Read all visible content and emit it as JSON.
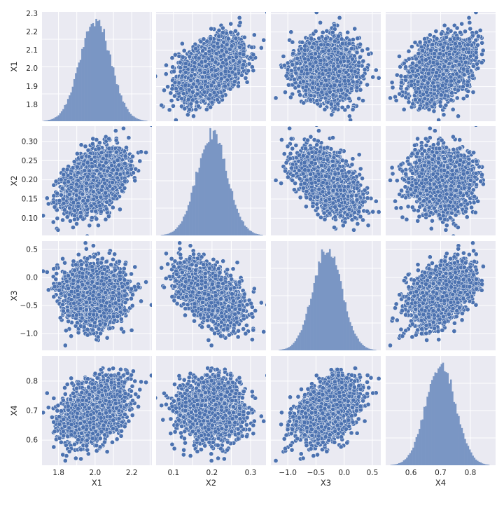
{
  "chart_data": {
    "type": "pairplot",
    "variables": [
      "X1",
      "X2",
      "X3",
      "X4"
    ],
    "diagonal_type": "histogram",
    "offdiagonal_type": "scatter",
    "style": {
      "background": "#EAEAF2",
      "grid_color": "#FFFFFF",
      "point_color": "#4C72B0",
      "point_edge": "#FFFFFF",
      "hist_color": "#7A96C4",
      "tick_color": "#262626",
      "grid": true
    },
    "axes": {
      "X1": {
        "lim": [
          1.71,
          2.31
        ],
        "ticks": [
          1.8,
          1.9,
          2.0,
          2.1,
          2.2,
          2.3
        ],
        "tick_labels": [
          "1.8",
          "1.9",
          "2.0",
          "2.1",
          "2.2",
          "2.3"
        ],
        "x_ticks": [
          1.8,
          2.0,
          2.2
        ],
        "x_tick_labels": [
          "1.8",
          "2.0",
          "2.2"
        ]
      },
      "X2": {
        "lim": [
          0.055,
          0.34
        ],
        "ticks": [
          0.1,
          0.15,
          0.2,
          0.25,
          0.3
        ],
        "tick_labels": [
          "0.10",
          "0.15",
          "0.20",
          "0.25",
          "0.30"
        ],
        "x_ticks": [
          0.1,
          0.2,
          0.3
        ],
        "x_tick_labels": [
          "0.1",
          "0.2",
          "0.3"
        ]
      },
      "X3": {
        "lim": [
          -1.3,
          0.65
        ],
        "ticks": [
          -1.0,
          -0.5,
          0.0,
          0.5
        ],
        "tick_labels": [
          "−1.0",
          "−0.5",
          "0.0",
          "0.5"
        ],
        "x_ticks": [
          -1.0,
          -0.5,
          0.0,
          0.5
        ],
        "x_tick_labels": [
          "−1.0",
          "−0.5",
          "0.0",
          "0.5"
        ]
      },
      "X4": {
        "lim": [
          0.515,
          0.885
        ],
        "ticks": [
          0.6,
          0.7,
          0.8
        ],
        "tick_labels": [
          "0.6",
          "0.7",
          "0.8"
        ],
        "x_ticks": [
          0.6,
          0.7,
          0.8
        ],
        "x_tick_labels": [
          "0.6",
          "0.7",
          "0.8"
        ]
      }
    },
    "distributions": {
      "X1": {
        "mean": 2.0,
        "std": 0.085
      },
      "X2": {
        "mean": 0.2,
        "std": 0.04
      },
      "X3": {
        "mean": -0.3,
        "std": 0.26
      },
      "X4": {
        "mean": 0.7,
        "std": 0.05
      }
    },
    "correlations": [
      [
        1.0,
        0.45,
        0.0,
        0.35
      ],
      [
        0.45,
        1.0,
        -0.5,
        0.0
      ],
      [
        0.0,
        -0.5,
        1.0,
        0.4
      ],
      [
        0.35,
        0.0,
        0.4,
        1.0
      ]
    ]
  }
}
